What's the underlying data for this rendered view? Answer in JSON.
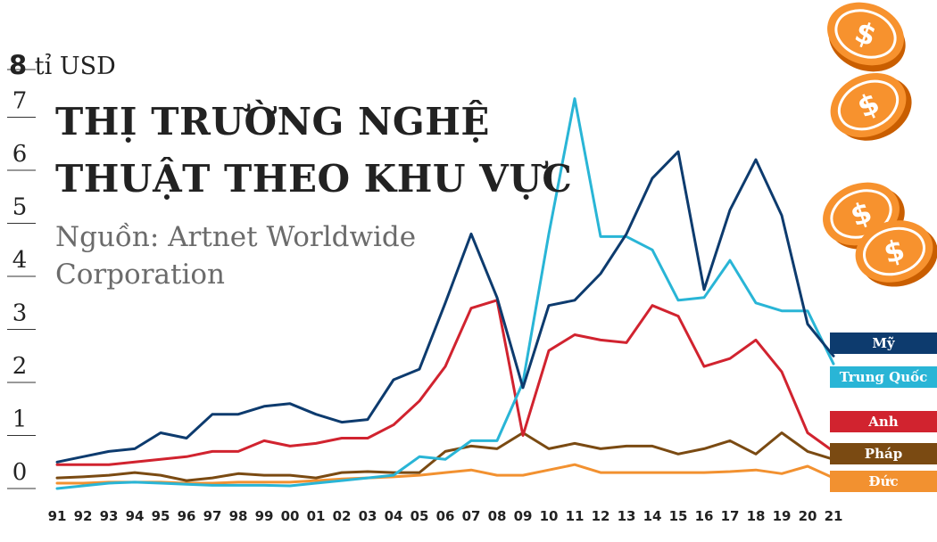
{
  "header": {
    "unit_number": "8",
    "unit_text": " tỉ USD",
    "title_line1": "THỊ TRƯỜNG NGHỆ",
    "title_line2": "THUẬT THEO KHU VỰC",
    "source_line1": "Nguồn: Artnet Worldwide",
    "source_line2": "Corporation"
  },
  "chart_data": {
    "type": "line",
    "title": "THỊ TRƯỜNG NGHỆ THUẬT THEO KHU VỰC",
    "subtitle": "Nguồn: Artnet Worldwide Corporation",
    "ylabel": "tỉ USD",
    "xlabel": "",
    "ylim": [
      0,
      8
    ],
    "yticks": [
      "0",
      "1",
      "2",
      "3",
      "4",
      "5",
      "6",
      "7"
    ],
    "categories": [
      "91",
      "92",
      "93",
      "94",
      "95",
      "96",
      "97",
      "98",
      "99",
      "00",
      "01",
      "02",
      "03",
      "04",
      "05",
      "06",
      "07",
      "08",
      "09",
      "10",
      "11",
      "12",
      "13",
      "14",
      "15",
      "16",
      "17",
      "18",
      "19",
      "20",
      "21"
    ],
    "grid": false,
    "legend_position": "right",
    "series": [
      {
        "name": "Mỹ",
        "color": "#0d3b6e",
        "values": [
          0.5,
          0.6,
          0.7,
          0.75,
          1.05,
          0.95,
          1.4,
          1.4,
          1.55,
          1.6,
          1.4,
          1.25,
          1.3,
          2.05,
          2.25,
          3.5,
          4.8,
          3.6,
          1.9,
          3.45,
          3.55,
          4.05,
          4.8,
          5.85,
          6.35,
          3.75,
          5.25,
          6.2,
          5.15,
          3.1,
          2.5
        ]
      },
      {
        "name": "Trung Quốc",
        "color": "#29b5d6",
        "values": [
          0.0,
          0.05,
          0.1,
          0.12,
          0.1,
          0.08,
          0.06,
          0.06,
          0.06,
          0.05,
          0.1,
          0.15,
          0.2,
          0.25,
          0.6,
          0.55,
          0.9,
          0.9,
          2.0,
          4.8,
          7.35,
          4.75,
          4.75,
          4.5,
          3.55,
          3.6,
          4.3,
          3.5,
          3.35,
          3.35,
          2.35
        ]
      },
      {
        "name": "Anh",
        "color": "#d1232f",
        "values": [
          0.45,
          0.45,
          0.45,
          0.5,
          0.55,
          0.6,
          0.7,
          0.7,
          0.9,
          0.8,
          0.85,
          0.95,
          0.95,
          1.2,
          1.65,
          2.3,
          3.4,
          3.55,
          1.0,
          2.6,
          2.9,
          2.8,
          2.75,
          3.45,
          3.25,
          2.3,
          2.45,
          2.8,
          2.2,
          1.05,
          0.7
        ]
      },
      {
        "name": "Pháp",
        "color": "#7a4a12",
        "values": [
          0.2,
          0.22,
          0.25,
          0.3,
          0.25,
          0.15,
          0.2,
          0.28,
          0.25,
          0.25,
          0.2,
          0.3,
          0.32,
          0.3,
          0.3,
          0.7,
          0.8,
          0.75,
          1.05,
          0.75,
          0.85,
          0.75,
          0.8,
          0.8,
          0.65,
          0.75,
          0.9,
          0.65,
          1.05,
          0.7,
          0.55
        ]
      },
      {
        "name": "Đức",
        "color": "#f29130",
        "values": [
          0.1,
          0.1,
          0.12,
          0.12,
          0.12,
          0.1,
          0.1,
          0.12,
          0.12,
          0.12,
          0.15,
          0.18,
          0.2,
          0.22,
          0.25,
          0.3,
          0.35,
          0.25,
          0.25,
          0.35,
          0.45,
          0.3,
          0.3,
          0.3,
          0.3,
          0.3,
          0.32,
          0.35,
          0.28,
          0.42,
          0.2
        ]
      }
    ]
  },
  "icons": [
    "coin-dollar-icon",
    "coin-dollar-icon",
    "coin-dollar-icon",
    "coin-dollar-icon"
  ]
}
